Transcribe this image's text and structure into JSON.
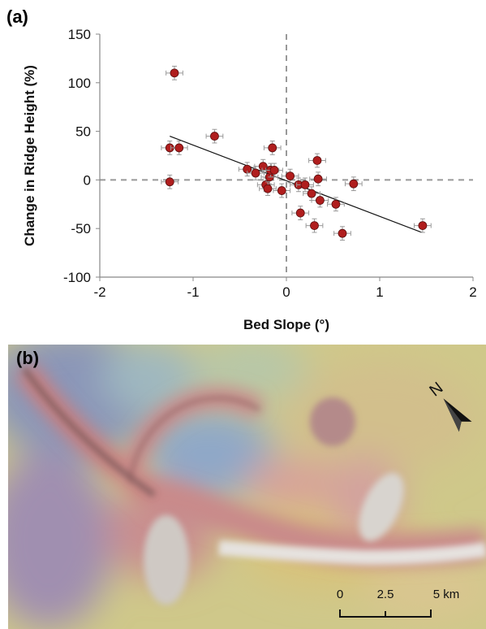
{
  "panel_labels": {
    "a": "(a)",
    "b": "(b)"
  },
  "chart_data": {
    "type": "scatter",
    "xlabel": "Bed Slope (°)",
    "ylabel": "Change in Ridge Height (%)",
    "xlim": [
      -2,
      2
    ],
    "ylim": [
      -100,
      150
    ],
    "xticks": [
      "-2",
      "-1",
      "0",
      "1",
      "2"
    ],
    "xtick_values": [
      -2,
      -1,
      0,
      1,
      2
    ],
    "yticks": [
      "-100",
      "-50",
      "0",
      "50",
      "100",
      "150"
    ],
    "ytick_values": [
      -100,
      -50,
      0,
      50,
      100,
      150
    ],
    "grid": false,
    "reference_lines": {
      "x": 0,
      "y": 0,
      "style": "dashed"
    },
    "marker_color": "#b01e1e",
    "points": [
      {
        "x": -1.2,
        "y": 110
      },
      {
        "x": -1.25,
        "y": 33
      },
      {
        "x": -1.15,
        "y": 33
      },
      {
        "x": -1.25,
        "y": -2
      },
      {
        "x": -0.77,
        "y": 45
      },
      {
        "x": -0.42,
        "y": 11
      },
      {
        "x": -0.33,
        "y": 7
      },
      {
        "x": -0.25,
        "y": 14
      },
      {
        "x": -0.22,
        "y": -5
      },
      {
        "x": -0.2,
        "y": -9
      },
      {
        "x": -0.18,
        "y": 3
      },
      {
        "x": -0.17,
        "y": 10
      },
      {
        "x": -0.15,
        "y": 33
      },
      {
        "x": -0.13,
        "y": 10
      },
      {
        "x": -0.05,
        "y": -11
      },
      {
        "x": 0.04,
        "y": 4
      },
      {
        "x": 0.13,
        "y": -5
      },
      {
        "x": 0.15,
        "y": -34
      },
      {
        "x": 0.2,
        "y": -5
      },
      {
        "x": 0.27,
        "y": -14
      },
      {
        "x": 0.3,
        "y": -47
      },
      {
        "x": 0.33,
        "y": 20
      },
      {
        "x": 0.34,
        "y": 1
      },
      {
        "x": 0.36,
        "y": -21
      },
      {
        "x": 0.53,
        "y": -25
      },
      {
        "x": 0.6,
        "y": -55
      },
      {
        "x": 0.72,
        "y": -4
      },
      {
        "x": 1.46,
        "y": -47
      }
    ],
    "error_x": 0.09,
    "error_y": 7,
    "trendline": {
      "x": [
        -1.25,
        1.45
      ],
      "y": [
        45,
        -54
      ]
    }
  },
  "map": {
    "north_label": "N",
    "scale_labels": [
      "0",
      "2.5",
      "5 km"
    ]
  }
}
